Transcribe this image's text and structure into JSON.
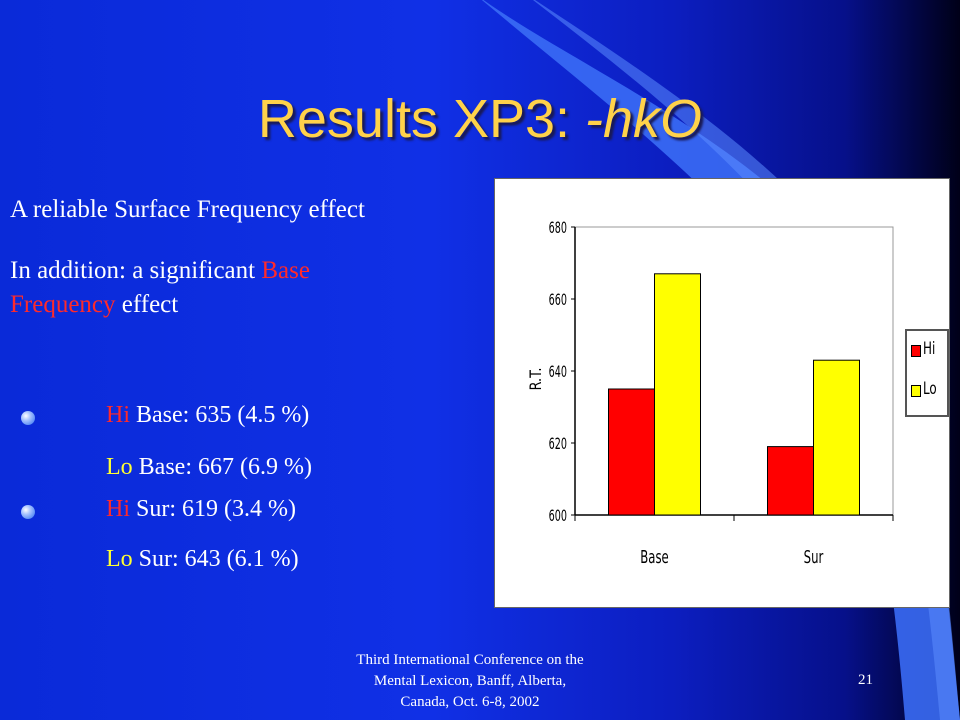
{
  "title": {
    "main": "Results XP3: ",
    "emph": "-hkO"
  },
  "text": {
    "line1": "A reliable Surface Frequency effect",
    "line2_prefix": "In addition: a significant ",
    "line2_red1": "Base",
    "line2_red2": "Frequency",
    "line2_suffix": " effect"
  },
  "stats": [
    {
      "level": "Hi",
      "rest": " Base: 635 (4.5 %)",
      "bullet": true
    },
    {
      "level": "Lo",
      "rest": " Base: 667 (6.9 %)",
      "bullet": false
    },
    {
      "level": "Hi",
      "rest": " Sur: 619 (3.4 %)",
      "bullet": true
    },
    {
      "level": "Lo",
      "rest": " Sur: 643 (6.1 %)",
      "bullet": false
    }
  ],
  "chart_data": {
    "type": "bar",
    "categories": [
      "Base",
      "Sur"
    ],
    "series": [
      {
        "name": "Hi",
        "values": [
          635,
          619
        ],
        "color": "#ff0000"
      },
      {
        "name": "Lo",
        "values": [
          667,
          643
        ],
        "color": "#ffff00"
      }
    ],
    "ylabel": "R.T.",
    "ylim": [
      600,
      680
    ],
    "yticks": [
      600,
      620,
      640,
      660,
      680
    ],
    "legend": "right",
    "grid": false
  },
  "footer": {
    "line1": "Third International Conference on the",
    "line2": "Mental Lexicon, Banff, Alberta,",
    "line3": "Canada, Oct. 6-8, 2002"
  },
  "page_number": "21",
  "colors": {
    "title": "#ffd24a",
    "highlight_red": "#ff2a2a",
    "highlight_yellow": "#ffff33",
    "background": "#1030e6"
  }
}
